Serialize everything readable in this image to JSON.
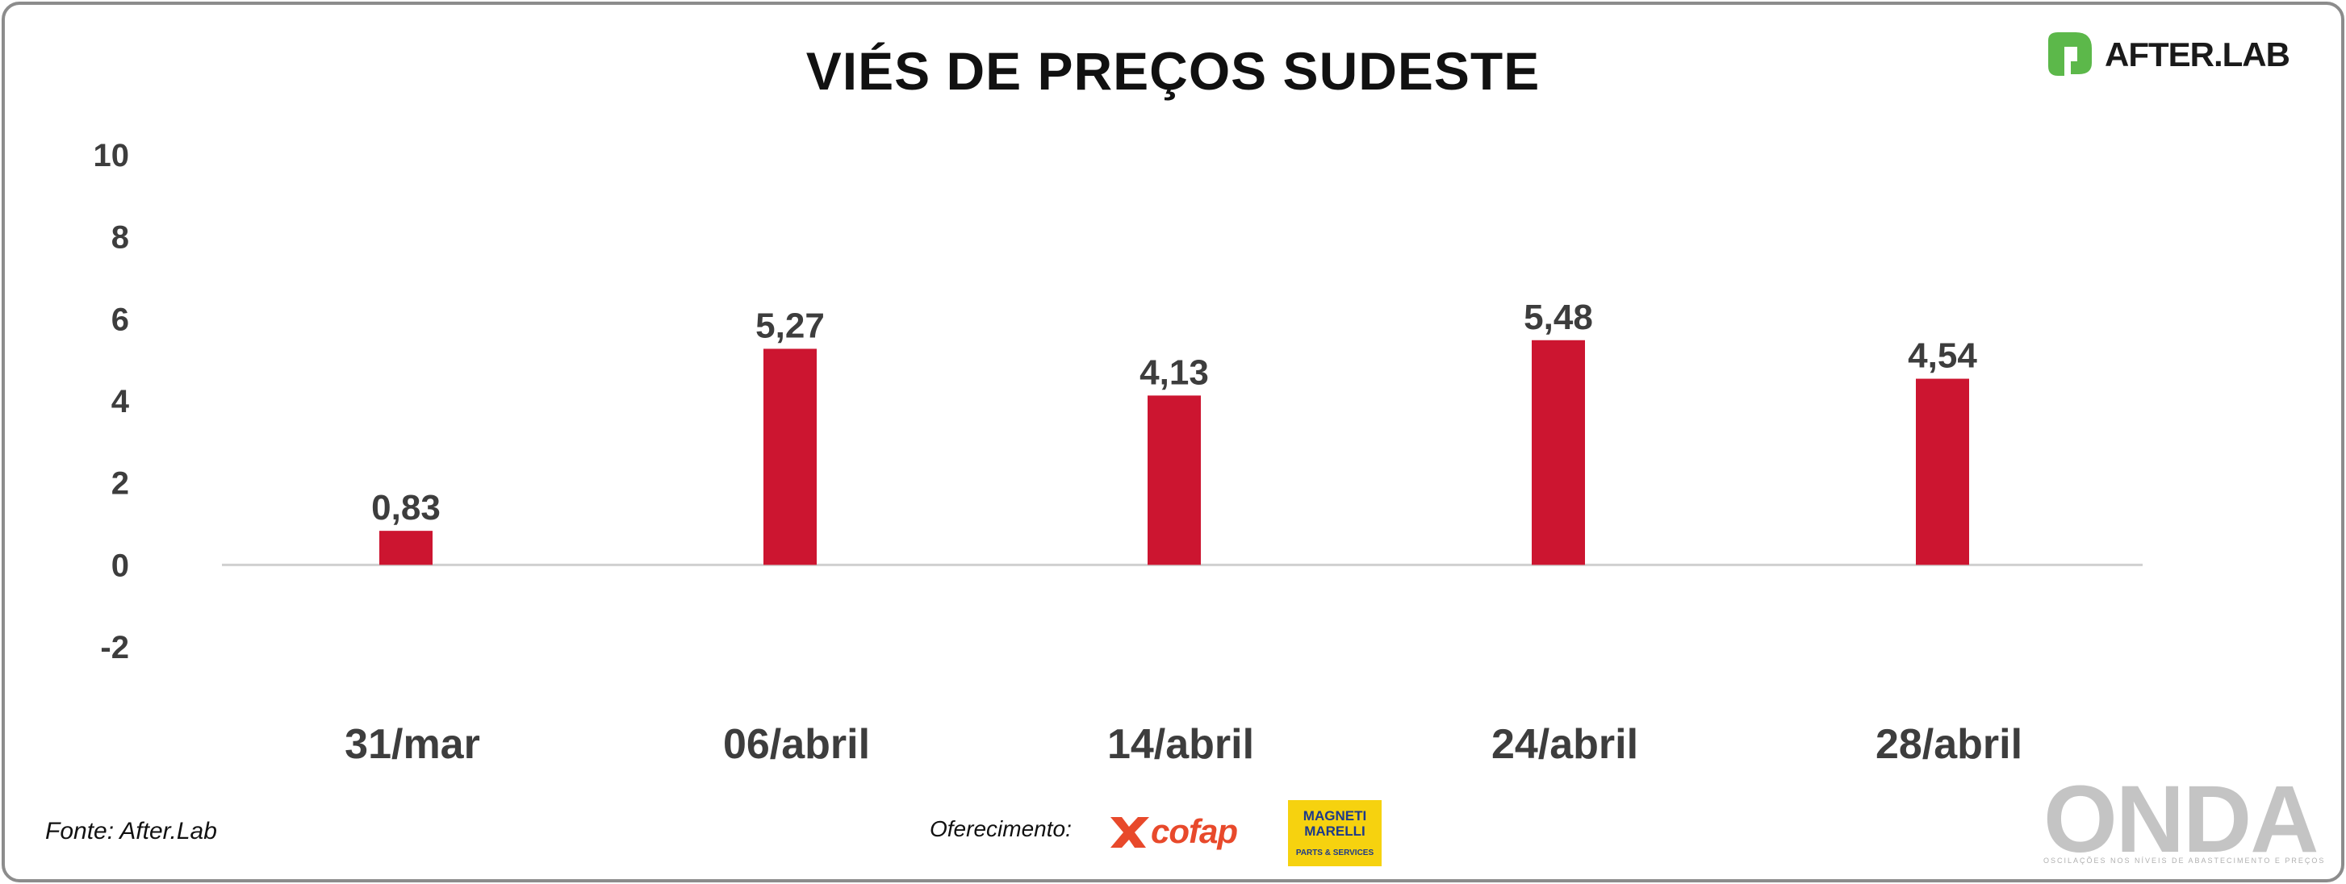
{
  "chart_data": {
    "type": "bar",
    "title": "VIÉS DE PREÇOS SUDESTE",
    "categories": [
      "31/mar",
      "06/abril",
      "14/abril",
      "24/abril",
      "28/abril"
    ],
    "values": [
      0.83,
      5.27,
      4.13,
      5.48,
      4.54
    ],
    "data_labels": [
      "0,83",
      "5,27",
      "4,13",
      "5,48",
      "4,54"
    ],
    "ylim": [
      -2,
      10
    ],
    "yticks": [
      10,
      8,
      6,
      4,
      2,
      0,
      -2
    ],
    "xlabel": "",
    "ylabel": "",
    "bar_color": "#cc1530",
    "grid": false,
    "legend": "none"
  },
  "brand": {
    "name": "AFTER.LAB",
    "logo_color": "#5cb84a"
  },
  "footer": {
    "source": "Fonte: After.Lab",
    "sponsor_label": "Oferecimento",
    "sponsor_colon": ":",
    "sponsor_cofap": "cofap",
    "sponsor_magneti": "MAGNETI MARELLI",
    "sponsor_magneti_sub": "PARTS & SERVICES",
    "onda": "ONDA",
    "onda_tagline": "OSCILAÇÕES NOS NÍVEIS DE ABASTECIMENTO E PREÇOS"
  }
}
